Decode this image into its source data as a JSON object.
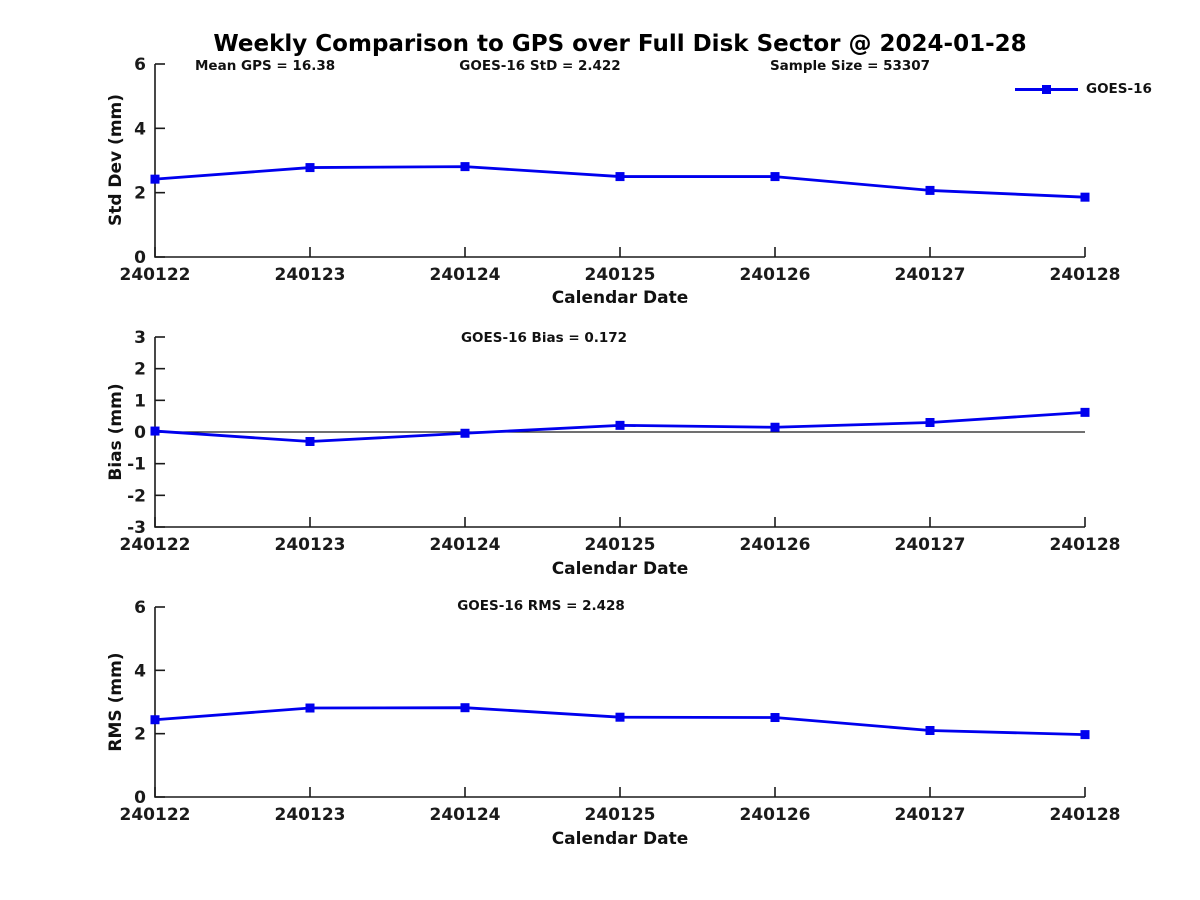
{
  "title": "Weekly Comparison to GPS over Full Disk Sector @ 2024-01-28",
  "legend": {
    "label": "GOES-16"
  },
  "colors": {
    "line": "#0000EE",
    "axis": "#1a1a1a",
    "text": "#111111",
    "zero_line": "#1a1a1a"
  },
  "chart_data": [
    {
      "type": "line",
      "name": "std-dev",
      "annotations": [
        "Mean GPS = 16.38",
        "GOES-16 StD = 2.422",
        "Sample Size = 53307"
      ],
      "categories": [
        "240122",
        "240123",
        "240124",
        "240125",
        "240126",
        "240127",
        "240128"
      ],
      "series": [
        {
          "name": "GOES-16",
          "values": [
            2.42,
            2.78,
            2.81,
            2.5,
            2.5,
            2.07,
            1.86
          ]
        }
      ],
      "xlabel": "Calendar Date",
      "ylabel": "Std Dev (mm)",
      "ylim": [
        0,
        6
      ],
      "yticks": [
        0,
        2,
        4,
        6
      ],
      "zero_line": false,
      "grid": false,
      "legend_position": "top-right-outside"
    },
    {
      "type": "line",
      "name": "bias",
      "annotations": [
        "GOES-16 Bias  = 0.172"
      ],
      "categories": [
        "240122",
        "240123",
        "240124",
        "240125",
        "240126",
        "240127",
        "240128"
      ],
      "series": [
        {
          "name": "GOES-16",
          "values": [
            0.03,
            -0.3,
            -0.04,
            0.21,
            0.15,
            0.3,
            0.62
          ]
        }
      ],
      "xlabel": "Calendar Date",
      "ylabel": "Bias (mm)",
      "ylim": [
        -3,
        3
      ],
      "yticks": [
        -3,
        -2,
        -1,
        0,
        1,
        2,
        3
      ],
      "zero_line": true,
      "grid": false
    },
    {
      "type": "line",
      "name": "rms",
      "annotations": [
        "GOES-16 RMS = 2.428"
      ],
      "categories": [
        "240122",
        "240123",
        "240124",
        "240125",
        "240126",
        "240127",
        "240128"
      ],
      "series": [
        {
          "name": "GOES-16",
          "values": [
            2.44,
            2.81,
            2.82,
            2.52,
            2.51,
            2.1,
            1.97
          ]
        }
      ],
      "xlabel": "Calendar Date",
      "ylabel": "RMS (mm)",
      "ylim": [
        0,
        6
      ],
      "yticks": [
        0,
        2,
        4,
        6
      ],
      "zero_line": false,
      "grid": false
    }
  ]
}
